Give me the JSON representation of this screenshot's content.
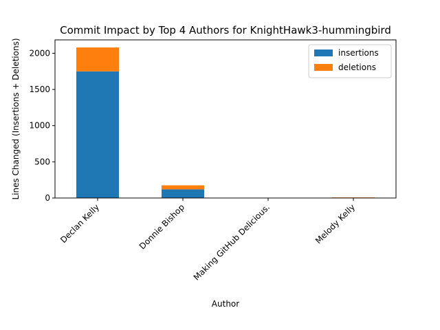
{
  "chart_data": {
    "type": "bar",
    "stacked": true,
    "title": "Commit Impact by Top 4 Authors for KnightHawk3-hummingbird",
    "xlabel": "Author",
    "ylabel": "Lines Changed (Insertions + Deletions)",
    "categories": [
      "Declan Kelly",
      "Donnie Bishop",
      "Making GitHub Delicious.",
      "Melody Kelly"
    ],
    "series": [
      {
        "name": "insertions",
        "values": [
          1750,
          120,
          0,
          3
        ],
        "color": "#1f77b4"
      },
      {
        "name": "deletions",
        "values": [
          330,
          55,
          0,
          5
        ],
        "color": "#ff7f0e"
      }
    ],
    "ylim": [
      0,
      2185
    ],
    "yticks": [
      0,
      500,
      1000,
      1500,
      2000
    ],
    "grid": false,
    "legend": "top-right"
  }
}
